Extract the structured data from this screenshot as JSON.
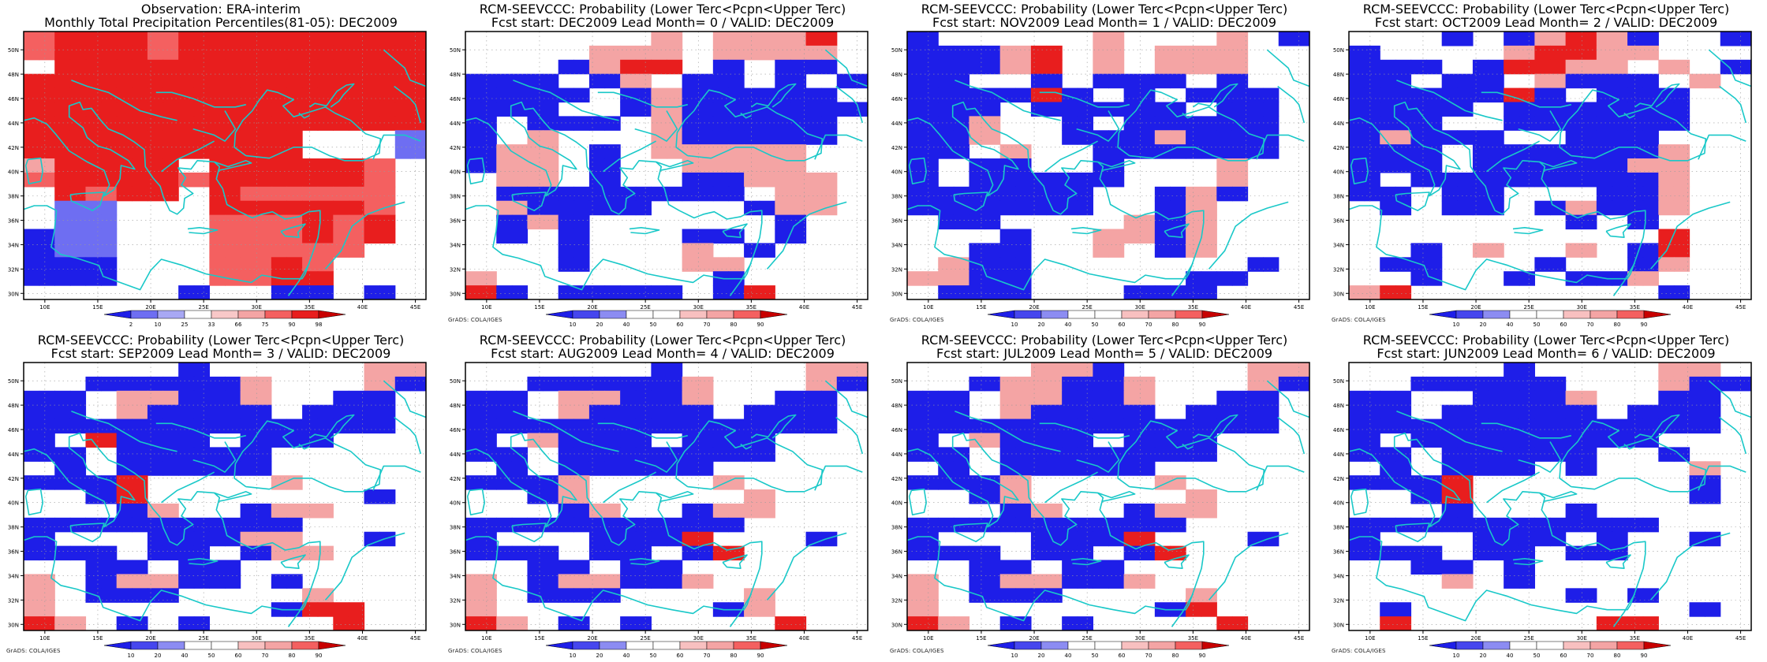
{
  "lat_ticks": [
    "30N",
    "32N",
    "34N",
    "36N",
    "38N",
    "40N",
    "42N",
    "44N",
    "46N",
    "48N",
    "50N"
  ],
  "lon_ticks": [
    "10E",
    "15E",
    "20E",
    "25E",
    "30E",
    "35E",
    "40E",
    "45E"
  ],
  "obs_scale": [
    "2",
    "10",
    "25",
    "33",
    "66",
    "75",
    "90",
    "98"
  ],
  "prob_scale": [
    "10",
    "20",
    "40",
    "50",
    "60",
    "70",
    "80",
    "90"
  ],
  "credit": "GrADS: COLA/IGES",
  "colors": {
    "blue": "#1e1ee8",
    "light_blue": "#6e6ef2",
    "pale_blue": "#a8a8f4",
    "pink": "#f4a4a4",
    "light_red": "#f46060",
    "red": "#e81e1e",
    "dark_red": "#c80000",
    "coast": "#19c8c8"
  },
  "panels": [
    {
      "title1": "Observation: ERA-interim",
      "title2": "Monthly Total Precipitation Percentiles(81-05): DEC2009",
      "scale": "obs",
      "grid": [
        "rrRRRRRRrrRRRRRRRRRRRRRRRR",
        "rrRRRRRRrrRRRRRRRRRRRRRRRR",
        "..RRRRRRRRRRRRRRRRRRRRRRRR",
        "RRRRRRRRRRRRRRRRRRRRRRRRRR",
        "RRRRRRRRRRRRRRRRRRRRRRRRRR",
        "RRRRRRRRRRRRRRRRRRRRRRRRRR",
        "RRRRRRRRRRRRRRRRRRRRRRRRRR",
        "RRRRRRRRRRRRRRRRRR......ll",
        "RRRRRRRRRRRRRRRRRR......ll",
        "ppRRRRRRRR..RRRRRRRRRRrr..",
        "rrRRRRRRRRrrRRRRRRRRRRrr..",
        "..RRrrRRRR..RRrrrrrrrrrr..",
        "..llll......RRRRRRRRRRrr..",
        "..llll......rrrrrrRRrrRR..",
        "BBllll......rrrrrrRRrrRR..",
        "BBllll......rrrrrrrrrr....",
        "BBBBBB......rrrrRRrr......",
        "BBBBBB......rrrrRRRR......",
        "..........BB....BBBB..BB.."
      ]
    },
    {
      "title1": "RCM-SEEVCCC: Probability (Lower Terc<Pcpn<Upper Terc)",
      "title2": "Fcst start: DEC2009   Lead Month= 0 / VALID: DEC2009",
      "scale": "prob",
      "grid": [
        "............pp..ppppppRR..",
        "........pppppp..pppppppp..",
        "......BBppRRRR..BB..BBBB..",
        "BBBBBB..BBpp..BBBB..BB..BB",
        "BBBBBBBB..BBppBBBBBBBBBB..",
        "BBBBBB....BBppBBBBBBBBBBBB",
        "BB..BBBBBB..ppBBBBBBBBBB..",
        "BB..pp......ppBBBBBBBBBB..",
        "BBpppp..BB..pppppppppp....",
        "BBpppp..BB....pppppppp....",
        "..pppp..BB....BBBBpppppp..",
        "..BBBBBBBBBBBBBBBB..pppp..",
        "..ppBBBBBBBB......BBpppp..",
        "..BBppBB............BB....",
        "..BB..BB......BBBB..BB....",
        "......BB......pp..BB......",
        "......BB......pppp........",
        "pp..............BB........",
        "RRBB..BBBBBBBB..BBRR......"
      ]
    },
    {
      "title1": "RCM-SEEVCCC: Probability (Lower Terc<Pcpn<Upper Terc)",
      "title2": "Fcst start: NOV2009   Lead Month= 1 / VALID: DEC2009",
      "scale": "prob",
      "grid": [
        "BB..........pp......pp..BB",
        "BBBBBBppRR..pp..pppppp....",
        "BBBBBBppRR..pp..pppppp....",
        "BBBB....BB..BBBBBB..BB....",
        "BBBBBBBBRRBB..BB..BBBBBB..",
        "BBBBBB..BBBBBBBBBB..BBBB..",
        "BBBBpp....BB..BBBBBBBBBB..",
        "BBBBpp....BBBBBBppBBBBBB..",
        "BBBB..pp....BBBBBBBBBBBB..",
        "BB..BBBB....BB......pp....",
        "BB..BBBBBBBBBB......pp....",
        "BBBBBBBBBBBB....BBppBB....",
        "BBBBBBBBBBBB....BBpp......",
        "..BBBB........ppBBpp......",
        "......BB....ppppBBpp......",
        "....BBBB....pp..BBpp......",
        "..ppBBBB..............BB..",
        "ppppBBBB..........BBBB....",
        "..BBBBBB......BBBBBB......"
      ]
    },
    {
      "title1": "RCM-SEEVCCC: Probability (Lower Terc<Pcpn<Upper Terc)",
      "title2": "Fcst start: OCT2009   Lead Month= 2 / VALID: DEC2009",
      "scale": "prob",
      "grid": [
        "......BB..BBppRRppBB....BB",
        "BB........ppRRRRpppp......",
        "BBBBBB..BBRRRRpppp..pp..BB",
        "BBBB..BBBB..ppBBBBBB..pp..",
        "BBBBBBBBBBRRBB..BBBBBB....",
        "BBBBBBBB..BBBBBBBBBBBB....",
        "BBBBBB....BBBBBBBBBBBB....",
        "BBppBBBBBB....BBBBBB......",
        "BBBBBB..BBBBBBBBBBBBpp....",
        "BBBBBB..BBBBBBBBBBpppp....",
        "BB..BBBBBBBBBBBBBBBBpp....",
        "BBBB..BBBB......BBBBpp....",
        "..BB..BBBB..BBppBBBBpp....",
        "..............BB..BB......",
        "....................RR....",
        "....BB..pp....pp..BBRR....",
        "..BBBB......BB....BBpp....",
        "....BB....BB..BBBBpp......",
        "ppRR................BB...."
      ]
    },
    {
      "title1": "RCM-SEEVCCC: Probability (Lower Terc<Pcpn<Upper Terc)",
      "title2": "Fcst start: SEP2009   Lead Month= 3 / VALID: DEC2009",
      "scale": "prob",
      "grid": [
        "..........BB..........pppp",
        "....BBBBBBBBBBpp......ppBB",
        "BBBB..ppppBBBBpp....BBBB..",
        "BBBB..ppBBBBBBBB..BBBBBB..",
        "BBBBBBBBBBBBBBBBBBBBBBBB..",
        "BB..RRBBBBBB..BBBBBB......",
        "BBBB..BBBBBBBBBB..........",
        "..BB..BBBBBBBBBB..........",
        "BBBBBBRR........pp........",
        "....BBRR..............BB..",
        "......BBpp....BBpppp......",
        "BBBBBBBBBBBBBBBBBB........",
        "BB......BBBBBBpppp....BB..",
        "BBBBBB..BBBB..BBpppp......",
        "....BBBB..BBBB............",
        "pp..BBppppBBBB..BB........",
        "pp..BBBBBB........pp......",
        "pp..............BBRRRR....",
        "RRpp..BB..BB........RR...."
      ]
    },
    {
      "title1": "RCM-SEEVCCC: Probability (Lower Terc<Pcpn<Upper Terc)",
      "title2": "Fcst start: AUG2009   Lead Month= 4 / VALID: DEC2009",
      "scale": "prob",
      "grid": [
        "............BB........pppp",
        "....BBBBBBBBBBpp......ppBB",
        "BBBB..ppppBBBBpp....BBBB..",
        "BBBB..ppBBBBBBBB..BBBBBB..",
        "BBBBBBBBBBBBBBBBBBBBBBBB..",
        "BB..ppBBBBBB..BBBBBB......",
        "BBBB..BBBBBBBBBBBBBB......",
        "..BB..BBBBBBBBBB..........",
        "BBBBBBpp........pp........",
        "....BBpp..........pp......",
        "......BBpp....BBpppp......",
        "BBBBBBBBBBBBBBBBBB........",
        "BB......BBBBBBRR......BB..",
        "BBBBBB..BBBB..BBRR........",
        "....BBBB..BBBB............",
        "pp..BBppppBBBBpp..........",
        "pp..BBBBBB........pp......",
        "pp..............BBpp......",
        "RRpp..BB..BB........RR...."
      ]
    },
    {
      "title1": "RCM-SEEVCCC: Probability (Lower Terc<Pcpn<Upper Terc)",
      "title2": "Fcst start: JUL2009   Lead Month= 5 / VALID: DEC2009",
      "scale": "prob",
      "grid": [
        "........ppppBB........pppp",
        "....BBppppBBBBpp......ppBB",
        "BBBB..ppppBBBBpp....BBBB..",
        "BBBB..ppBBBBBBBB..BBBBBB..",
        "BBBBBBBBBBBBBBBBBBBBBBBB..",
        "BB..ppBBBBBB..BBBBBB......",
        "BBBB..BBBBBBBBBBBBBB......",
        "..BB..BBBBBBBBBB..........",
        "BBBBBBpp........pp........",
        "....BBpp..........pp......",
        "......BBpp....BBpppp......",
        "BBBBBBBBBBBBBBBBBB........",
        "BB......BBBBBBRR......BB..",
        "BBBBBB..BBBB..BBRR........",
        "....BBBB..BBBB............",
        "pp..BBppppBBBBpp..........",
        "pp..BBBBBB........pp......",
        "pp..............BBRR......",
        "RRpp..BB..BB........RR...."
      ]
    },
    {
      "title1": "RCM-SEEVCCC: Probability (Lower Terc<Pcpn<Upper Terc)",
      "title2": "Fcst start: JUN2009   Lead Month= 6 / VALID: DEC2009",
      "scale": "prob",
      "grid": [
        "..........BB........pppp..",
        "....BBBBBBBBBB......ppBBBB",
        "BBBB....BBBBBBpp....BBBB..",
        "BBBB..BBBBBBBBBB..BBBBBB..",
        "BBBBBBBBBBBBBBBBBBBBBBBB..",
        "BB..BBBBBBBBBBBBBBBB......",
        "BBBB..BBBBBBBBBB....BB....",
        "..BB..BBBBBB..BB......pp..",
        "BBBBBBRR..............BB..",
        "....BBRR..............BB..",
        "......BB......BB..........",
        "BBBBBBBBBBBBBBBBBBBB......",
        "BB......BBBBBB..BB....BB..",
        "BBBBBB..BBBB..BBBB........",
        "....BBBB..BB..............",
        "......pp..BB..............",
        "..............BB..BB......",
        "..BB..................BB..",
        "..RR............RRRR......"
      ]
    }
  ]
}
